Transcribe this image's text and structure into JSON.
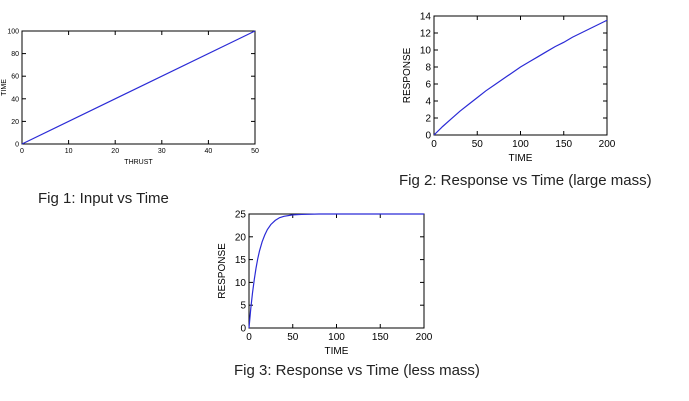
{
  "captions": {
    "fig1": "Fig 1: Input vs Time",
    "fig2": "Fig 2: Response vs Time (large mass)",
    "fig3": "Fig 3: Response vs Time (less mass)"
  },
  "colors": {
    "line": "#2b2bd6",
    "axes": "#000000",
    "background": "#ffffff"
  },
  "chart_data": [
    {
      "type": "line",
      "title": "",
      "xlabel": "THRUST",
      "ylabel": "TIME",
      "xlim": [
        0,
        50
      ],
      "ylim": [
        0,
        100
      ],
      "xticks": [
        0,
        10,
        20,
        30,
        40,
        50
      ],
      "yticks": [
        0,
        20,
        40,
        60,
        80,
        100
      ],
      "grid": false,
      "series": [
        {
          "x": [
            0,
            50
          ],
          "y": [
            0,
            100
          ]
        }
      ]
    },
    {
      "type": "line",
      "title": "",
      "xlabel": "TIME",
      "ylabel": "RESPONSE",
      "xlim": [
        0,
        200
      ],
      "ylim": [
        0,
        14
      ],
      "xticks": [
        0,
        50,
        100,
        150,
        200
      ],
      "yticks": [
        0,
        2,
        4,
        6,
        8,
        10,
        12,
        14
      ],
      "grid": false,
      "series": [
        {
          "x": [
            0,
            10,
            20,
            30,
            40,
            50,
            60,
            70,
            80,
            90,
            100,
            110,
            120,
            130,
            140,
            150,
            160,
            170,
            180,
            190,
            200
          ],
          "y": [
            0,
            1.0,
            1.9,
            2.8,
            3.6,
            4.4,
            5.2,
            5.9,
            6.6,
            7.3,
            8.0,
            8.6,
            9.2,
            9.8,
            10.4,
            10.9,
            11.5,
            12.0,
            12.5,
            13.0,
            13.5
          ]
        }
      ]
    },
    {
      "type": "line",
      "title": "",
      "xlabel": "TIME",
      "ylabel": "RESPONSE",
      "xlim": [
        0,
        200
      ],
      "ylim": [
        0,
        25
      ],
      "xticks": [
        0,
        50,
        100,
        150,
        200
      ],
      "yticks": [
        0,
        5,
        10,
        15,
        20,
        25
      ],
      "grid": false,
      "series": [
        {
          "x": [
            0,
            2,
            4,
            6,
            8,
            10,
            12,
            15,
            18,
            21,
            25,
            30,
            35,
            40,
            50,
            60,
            80,
            100,
            150,
            200
          ],
          "y": [
            0,
            4.2,
            7.7,
            10.6,
            13.1,
            15.2,
            16.9,
            18.9,
            20.4,
            21.6,
            22.7,
            23.6,
            24.2,
            24.5,
            24.8,
            24.9,
            25,
            25,
            25,
            25
          ]
        }
      ]
    }
  ]
}
